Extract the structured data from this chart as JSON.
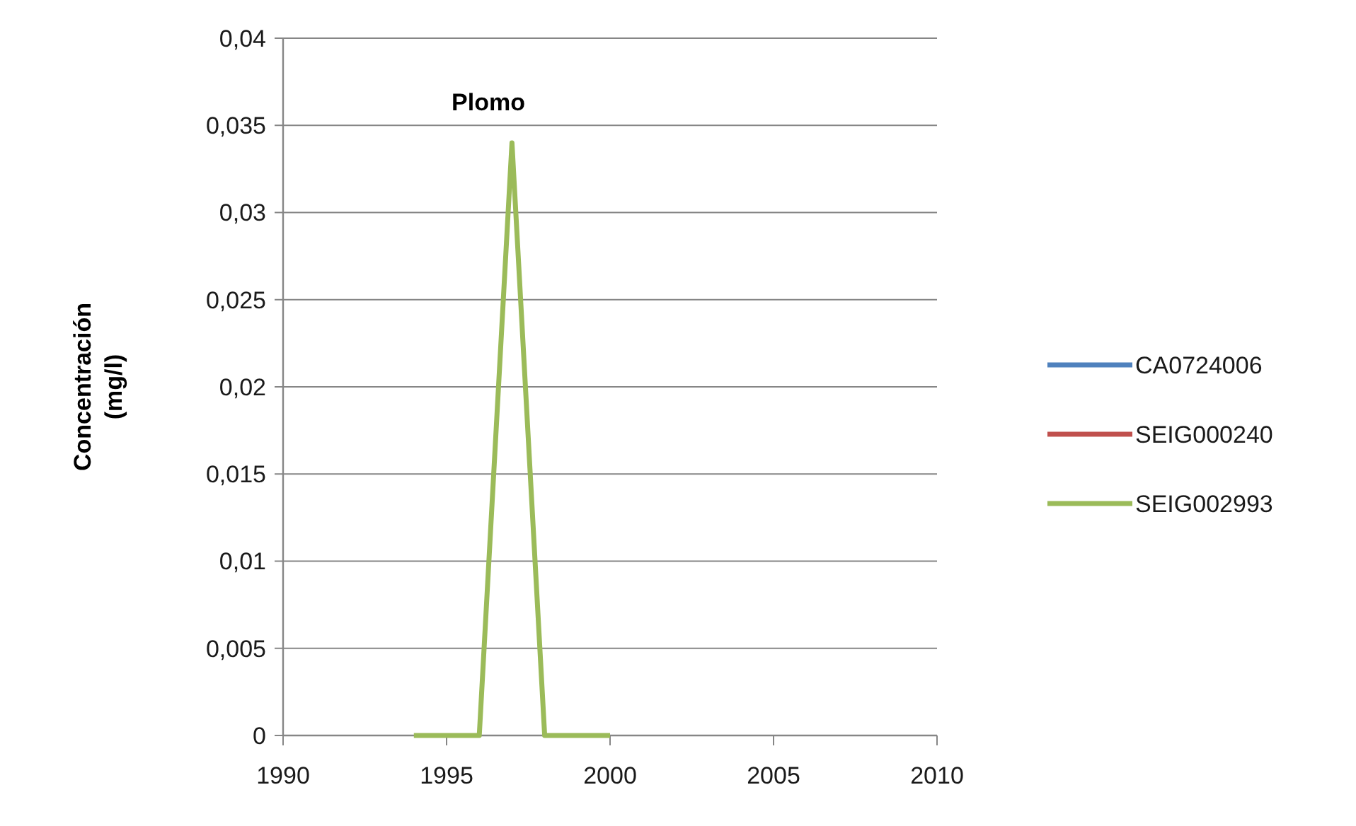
{
  "chart_data": {
    "type": "line",
    "title": "Plomo",
    "ylabel": "Concentración (mg/l)",
    "x": [
      1994,
      1996,
      1997,
      1998,
      2000
    ],
    "series": [
      {
        "name": "CA0724006",
        "color": "#4f81bd",
        "values": [
          null,
          null,
          null,
          null,
          null
        ]
      },
      {
        "name": "SEIG000240",
        "color": "#c0504d",
        "values": [
          null,
          null,
          null,
          null,
          null
        ]
      },
      {
        "name": "SEIG002993",
        "color": "#9bbb59",
        "values": [
          0,
          0,
          0.034,
          0,
          0
        ]
      }
    ],
    "xlim": [
      1990,
      2010
    ],
    "xticks": [
      1990,
      1995,
      2000,
      2005,
      2010
    ],
    "ylim": [
      0,
      0.04
    ],
    "yticks": [
      0,
      {
        "value": 0.005,
        "label": "0,005"
      },
      {
        "value": 0.01,
        "label": "0,01"
      },
      {
        "value": 0.015,
        "label": "0,015"
      },
      {
        "value": 0.02,
        "label": "0,02"
      },
      {
        "value": 0.025,
        "label": "0,025"
      },
      {
        "value": 0.03,
        "label": "0,03"
      },
      {
        "value": 0.035,
        "label": "0,035"
      },
      {
        "value": 0.04,
        "label": "0,04"
      }
    ],
    "grid": "y",
    "legend": "right",
    "marker": "none",
    "line_style": "solid"
  }
}
